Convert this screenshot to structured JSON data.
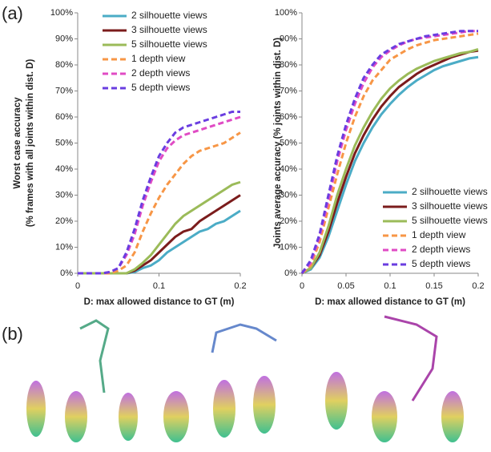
{
  "panels": [
    "(a)",
    "(b)"
  ],
  "chart_data": [
    {
      "type": "line",
      "xlabel": "D: max allowed distance to GT (m)",
      "ylabel": [
        "Worst case accuracy",
        "(% frames with all joints within dist. D)"
      ],
      "x": [
        0,
        0.01,
        0.02,
        0.03,
        0.04,
        0.05,
        0.06,
        0.07,
        0.08,
        0.09,
        0.1,
        0.11,
        0.12,
        0.13,
        0.14,
        0.15,
        0.16,
        0.17,
        0.18,
        0.19,
        0.2
      ],
      "xlim": [
        0,
        0.2
      ],
      "xticks": [
        0,
        0.1,
        0.2
      ],
      "ylim": [
        0,
        100
      ],
      "yticks": [
        {
          "value": 0,
          "label": "0%"
        },
        {
          "value": 10,
          "label": "10%"
        },
        {
          "value": 20,
          "label": "20%"
        },
        {
          "value": 30,
          "label": "30%"
        },
        {
          "value": 40,
          "label": "40%"
        },
        {
          "value": 50,
          "label": "50%"
        },
        {
          "value": 60,
          "label": "60%"
        },
        {
          "value": 70,
          "label": "70%"
        },
        {
          "value": 80,
          "label": "80%"
        },
        {
          "value": 90,
          "label": "90%"
        },
        {
          "value": 100,
          "label": "100%"
        }
      ],
      "legend": "upper right",
      "series": [
        {
          "name": "2 silhouette views",
          "color": "#4bacc6",
          "dashed": false,
          "values": [
            0,
            0,
            0,
            0,
            0,
            0,
            0,
            0.5,
            2,
            3,
            5,
            8,
            10,
            12,
            14,
            16,
            17,
            19,
            20,
            22,
            24
          ]
        },
        {
          "name": "3 silhouette views",
          "color": "#7b1c1c",
          "dashed": false,
          "values": [
            0,
            0,
            0,
            0,
            0,
            0,
            0,
            1,
            3,
            5,
            8,
            11,
            14,
            16,
            17,
            20,
            22,
            24,
            26,
            28,
            30
          ]
        },
        {
          "name": "5 silhouette views",
          "color": "#9bbb59",
          "dashed": false,
          "values": [
            0,
            0,
            0,
            0,
            0,
            0,
            0,
            1.5,
            4,
            7,
            11,
            15,
            19,
            22,
            24,
            26,
            28,
            30,
            32,
            34,
            35
          ]
        },
        {
          "name": "1 depth view",
          "color": "#f79646",
          "dashed": true,
          "values": [
            0,
            0,
            0,
            0,
            0,
            1,
            3,
            8,
            16,
            23,
            29,
            34,
            38,
            42,
            45,
            47,
            48,
            49,
            50,
            52,
            54
          ]
        },
        {
          "name": "2 depth views",
          "color": "#e04bc4",
          "dashed": true,
          "values": [
            0,
            0,
            0,
            0,
            0.5,
            2,
            7,
            15,
            26,
            35,
            43,
            48,
            51,
            53,
            54,
            55,
            56,
            57,
            58,
            59,
            60
          ]
        },
        {
          "name": "5 depth views",
          "color": "#6a3de0",
          "dashed": true,
          "values": [
            0,
            0,
            0,
            0,
            0.5,
            2,
            8,
            17,
            28,
            37,
            45,
            50,
            54,
            56,
            57,
            58,
            59,
            60,
            61,
            62,
            62
          ]
        }
      ]
    },
    {
      "type": "line",
      "xlabel": "D: max allowed distance to GT (m)",
      "ylabel": [
        "Joints average accuracy (% joints within dist. D)"
      ],
      "x": [
        0,
        0.01,
        0.02,
        0.03,
        0.04,
        0.05,
        0.06,
        0.07,
        0.08,
        0.09,
        0.1,
        0.11,
        0.12,
        0.13,
        0.14,
        0.15,
        0.16,
        0.17,
        0.18,
        0.19,
        0.2
      ],
      "xlim": [
        0,
        0.2
      ],
      "xticks": [
        0,
        0.05,
        0.1,
        0.15,
        0.2
      ],
      "ylim": [
        0,
        100
      ],
      "yticks": [
        {
          "value": 0,
          "label": "0%"
        },
        {
          "value": 10,
          "label": "10%"
        },
        {
          "value": 20,
          "label": "20%"
        },
        {
          "value": 30,
          "label": "30%"
        },
        {
          "value": 40,
          "label": "40%"
        },
        {
          "value": 50,
          "label": "50%"
        },
        {
          "value": 60,
          "label": "60%"
        },
        {
          "value": 70,
          "label": "70%"
        },
        {
          "value": 80,
          "label": "80%"
        },
        {
          "value": 90,
          "label": "90%"
        },
        {
          "value": 100,
          "label": "100%"
        }
      ],
      "legend": "lower right",
      "series": [
        {
          "name": "2 silhouette views",
          "color": "#4bacc6",
          "dashed": false,
          "values": [
            0,
            1.5,
            6,
            14,
            24,
            34,
            43,
            50,
            56,
            61,
            65,
            68.5,
            71.5,
            74,
            76,
            78,
            79.5,
            80.5,
            81.5,
            82.5,
            83
          ]
        },
        {
          "name": "3 silhouette views",
          "color": "#7b1c1c",
          "dashed": false,
          "values": [
            0,
            2,
            7,
            16,
            27,
            37,
            46,
            53,
            59,
            64,
            68,
            71.5,
            74,
            76.5,
            78.5,
            80,
            81.5,
            83,
            84,
            85,
            85.5
          ]
        },
        {
          "name": "5 silhouette views",
          "color": "#9bbb59",
          "dashed": false,
          "values": [
            0,
            2,
            8,
            18,
            30,
            40,
            49,
            56,
            62,
            67,
            71,
            74,
            76.5,
            78.5,
            80,
            81.5,
            82.5,
            83.5,
            84.5,
            85,
            86
          ]
        },
        {
          "name": "1 depth view",
          "color": "#f79646",
          "dashed": true,
          "values": [
            0,
            3,
            12,
            25,
            38,
            50,
            60,
            68,
            74,
            78,
            82,
            84,
            86,
            87.5,
            88.5,
            89.5,
            90,
            90.5,
            91,
            91.5,
            92
          ]
        },
        {
          "name": "2 depth views",
          "color": "#e04bc4",
          "dashed": true,
          "values": [
            0,
            4,
            14,
            28,
            43,
            55,
            65,
            73,
            79,
            83,
            85.5,
            87.5,
            89,
            90,
            90.5,
            91,
            91.5,
            92,
            92.5,
            93,
            93
          ]
        },
        {
          "name": "5 depth views",
          "color": "#6a3de0",
          "dashed": true,
          "values": [
            0,
            5,
            15,
            30,
            45,
            57,
            67,
            75,
            80,
            84,
            86,
            88,
            89,
            90,
            91,
            91.5,
            92,
            92.5,
            93,
            93,
            93
          ]
        }
      ]
    }
  ]
}
